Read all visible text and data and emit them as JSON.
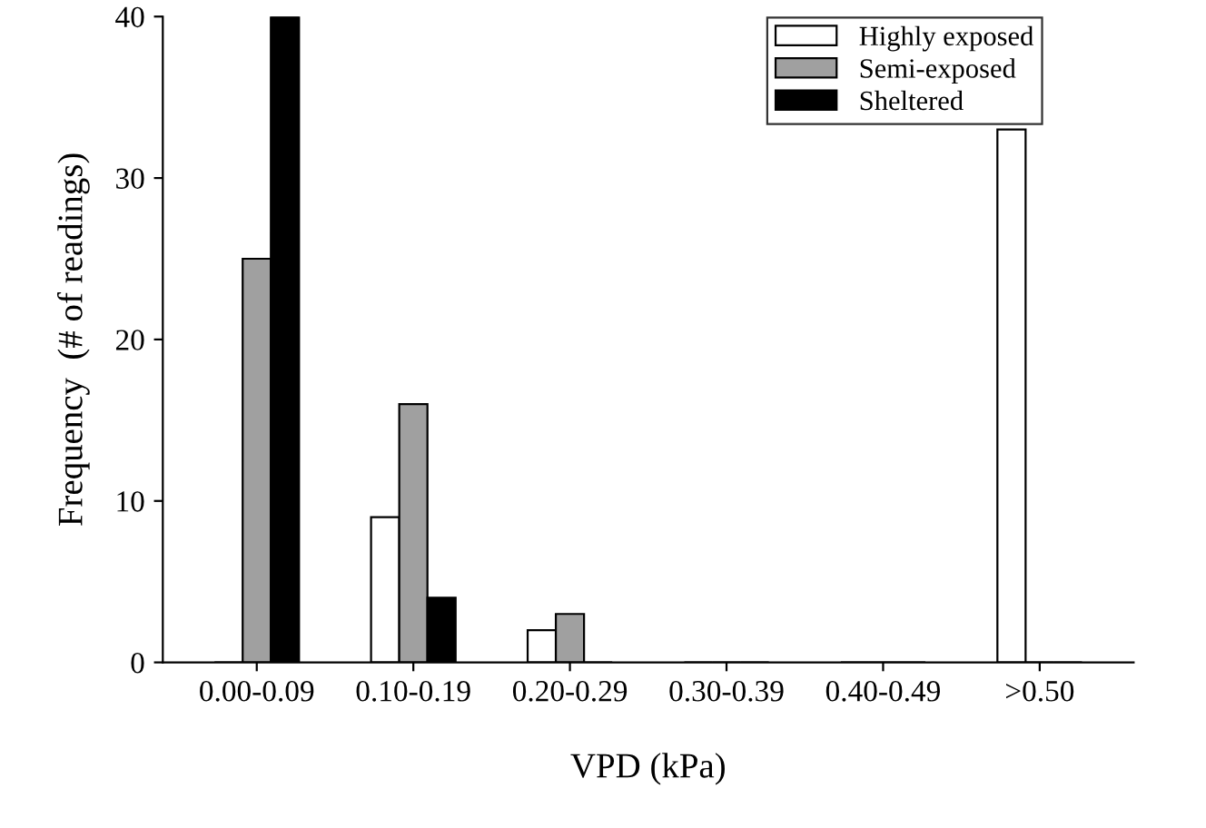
{
  "chart_data": {
    "type": "bar",
    "xlabel": "VPD (kPa)",
    "ylabel": "Frequency  (# of readings)",
    "categories": [
      "0.00-0.09",
      "0.10-0.19",
      "0.20-0.29",
      "0.30-0.39",
      "0.40-0.49",
      ">0.50"
    ],
    "series": [
      {
        "name": "Highly exposed",
        "color": "#ffffff",
        "values": [
          0,
          9,
          2,
          0,
          0,
          33
        ]
      },
      {
        "name": "Semi-exposed",
        "color": "#a0a0a0",
        "values": [
          25,
          16,
          3,
          0,
          0,
          0
        ]
      },
      {
        "name": "Sheltered",
        "color": "#000000",
        "values": [
          40,
          4,
          0,
          0,
          0,
          0
        ]
      }
    ],
    "ylim": [
      0,
      40
    ],
    "yticks": [
      0,
      10,
      20,
      30,
      40
    ],
    "grid": false,
    "legend": "top right"
  }
}
